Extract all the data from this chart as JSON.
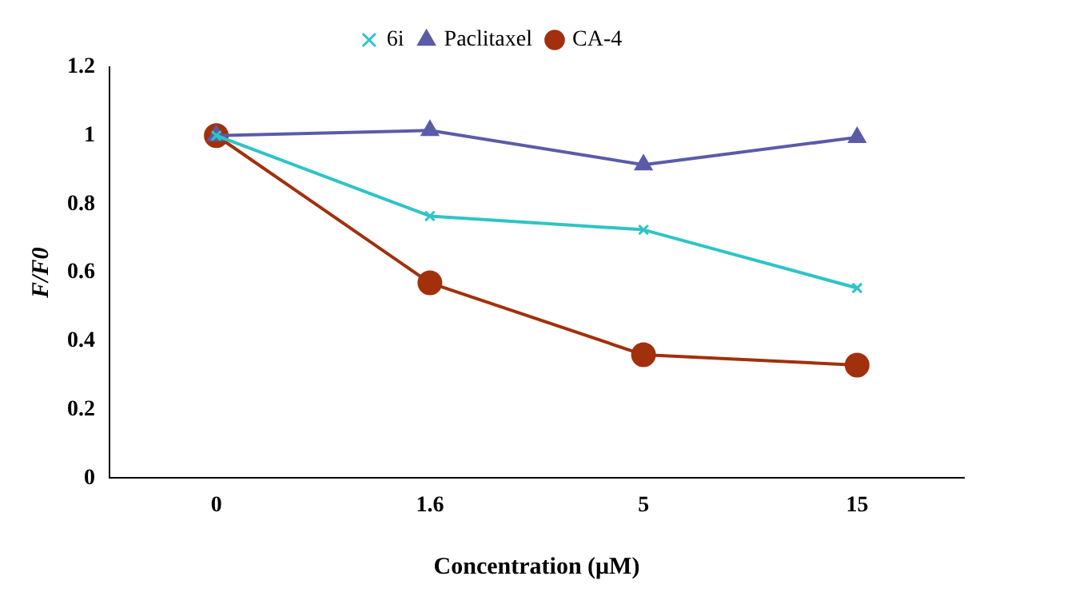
{
  "chart_data": {
    "type": "line",
    "xlabel": "Concentration (μM)",
    "ylabel": "F/F0",
    "categories": [
      "0",
      "1.6",
      "5",
      "15"
    ],
    "series": [
      {
        "name": "6i",
        "color": "#2ec4c6",
        "marker": "cross",
        "values": [
          1,
          0.765,
          0.725,
          0.555
        ]
      },
      {
        "name": "Paclitaxel",
        "color": "#5a5ca8",
        "marker": "triangle",
        "values": [
          1,
          1.015,
          0.915,
          0.995
        ]
      },
      {
        "name": "CA-4",
        "color": "#a2300c",
        "marker": "circle",
        "values": [
          1,
          0.57,
          0.36,
          0.33
        ]
      }
    ],
    "ylim": [
      0,
      1.2
    ],
    "yticks": [
      0,
      0.2,
      0.4,
      0.6,
      0.8,
      1,
      1.2
    ],
    "grid": false,
    "legend": "top"
  }
}
